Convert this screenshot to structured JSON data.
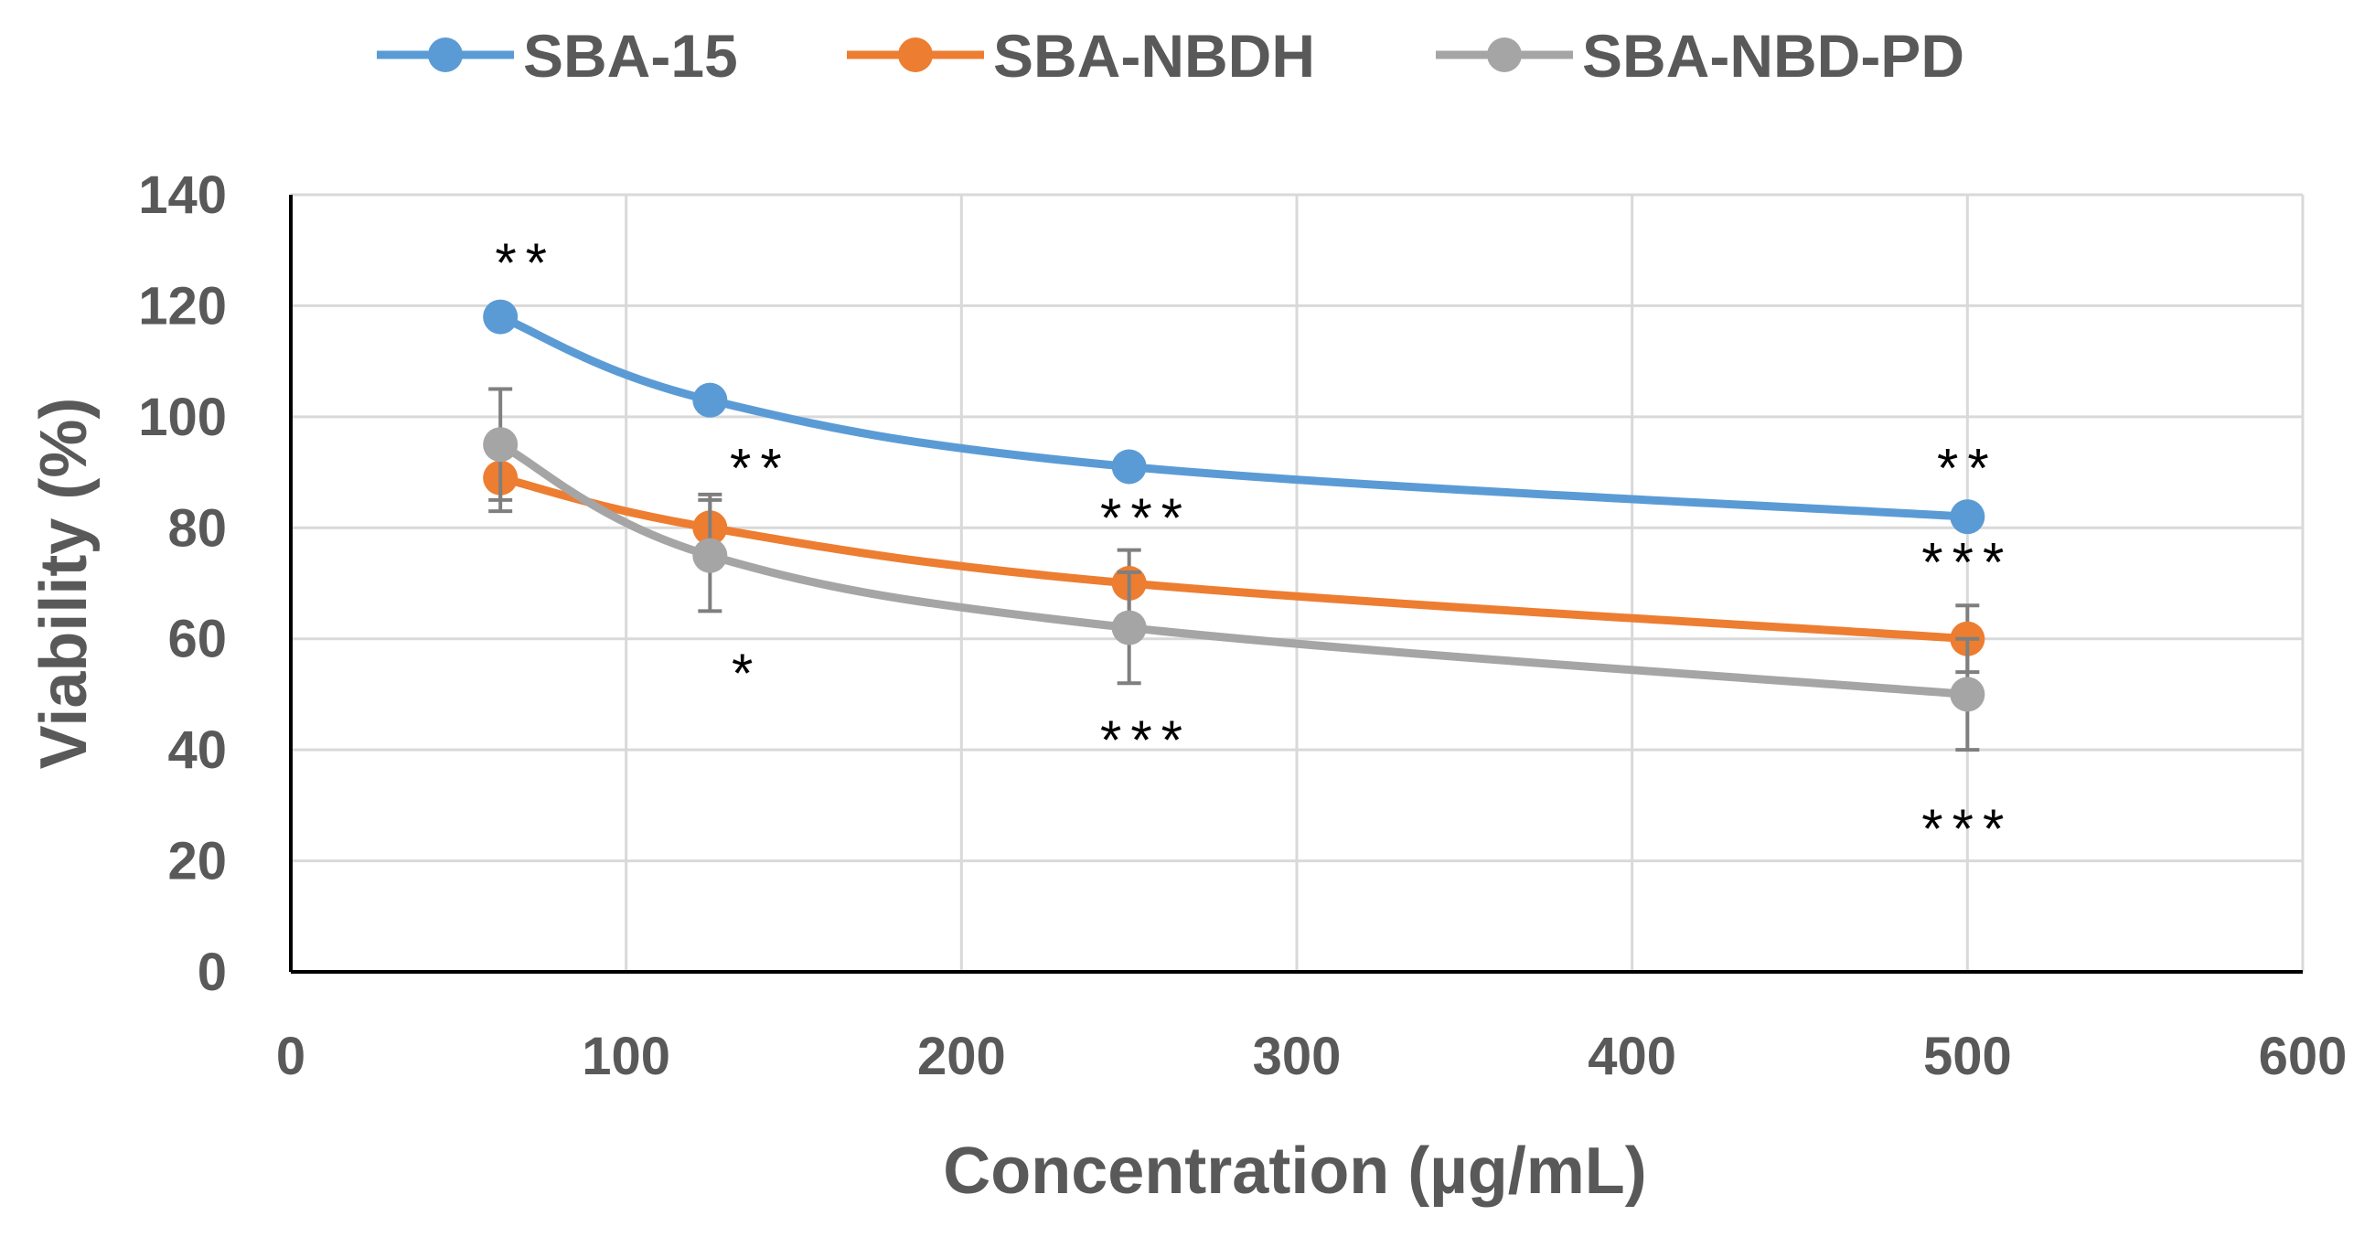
{
  "chart_data": {
    "type": "line",
    "title": "",
    "xlabel": "Concentration (µg/mL)",
    "ylabel": "Viability (%)",
    "xlim": [
      0,
      600
    ],
    "ylim": [
      0,
      140
    ],
    "xticks": [
      0,
      100,
      200,
      300,
      400,
      500,
      600
    ],
    "yticks": [
      0,
      20,
      40,
      60,
      80,
      100,
      120,
      140
    ],
    "grid": true,
    "legend_position": "top",
    "x": [
      62.5,
      125,
      250,
      500
    ],
    "series": [
      {
        "name": "SBA-15",
        "color": "#5B9BD5",
        "values": [
          118,
          103,
          91,
          82
        ]
      },
      {
        "name": "SBA-NBDH",
        "color": "#ED7D31",
        "values": [
          89,
          80,
          70,
          60
        ],
        "errors": [
          6,
          6,
          6,
          6
        ]
      },
      {
        "name": "SBA-NBD-PD",
        "color": "#A5A5A5",
        "values": [
          95,
          75,
          62,
          50
        ],
        "errors": [
          10,
          10,
          10,
          10
        ]
      }
    ],
    "annotations": [
      {
        "text": "**",
        "x": 70,
        "y": 128
      },
      {
        "text": "**",
        "x": 140,
        "y": 91
      },
      {
        "text": "*",
        "x": 136,
        "y": 54
      },
      {
        "text": "***",
        "x": 255,
        "y": 82
      },
      {
        "text": "***",
        "x": 255,
        "y": 42
      },
      {
        "text": "**",
        "x": 500,
        "y": 91
      },
      {
        "text": "***",
        "x": 500,
        "y": 74
      },
      {
        "text": "***",
        "x": 500,
        "y": 26
      }
    ]
  }
}
